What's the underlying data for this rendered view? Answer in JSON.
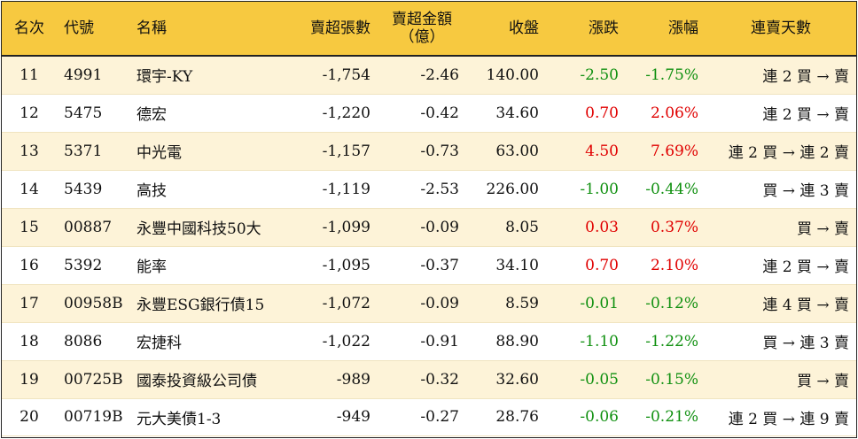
{
  "headers": {
    "rank": "名次",
    "code": "代號",
    "name": "名稱",
    "net_sell_lots": "賣超張數",
    "net_sell_amount": "賣超金額",
    "net_sell_amount_unit": "（億）",
    "close": "收盤",
    "change": "漲跌",
    "change_pct": "漲幅",
    "streak": "連賣天數"
  },
  "colors": {
    "header_bg": "#f7c940",
    "stripe_bg": "#fdf3d8",
    "up": "#e00000",
    "down": "#109010"
  },
  "rows": [
    {
      "rank": "11",
      "code": "4991",
      "name": "環宇-KY",
      "lots": "-1,754",
      "amount": "-2.46",
      "close": "140.00",
      "change": "-2.50",
      "pct": "-1.75%",
      "dir": "down",
      "streak": "連 2 買 → 賣"
    },
    {
      "rank": "12",
      "code": "5475",
      "name": "德宏",
      "lots": "-1,220",
      "amount": "-0.42",
      "close": "34.60",
      "change": "0.70",
      "pct": "2.06%",
      "dir": "up",
      "streak": "連 2 買 → 賣"
    },
    {
      "rank": "13",
      "code": "5371",
      "name": "中光電",
      "lots": "-1,157",
      "amount": "-0.73",
      "close": "63.00",
      "change": "4.50",
      "pct": "7.69%",
      "dir": "up",
      "streak": "連 2 買 → 連 2 賣"
    },
    {
      "rank": "14",
      "code": "5439",
      "name": "高技",
      "lots": "-1,119",
      "amount": "-2.53",
      "close": "226.00",
      "change": "-1.00",
      "pct": "-0.44%",
      "dir": "down",
      "streak": "買 → 連 3 賣"
    },
    {
      "rank": "15",
      "code": "00887",
      "name": "永豐中國科技50大",
      "lots": "-1,099",
      "amount": "-0.09",
      "close": "8.05",
      "change": "0.03",
      "pct": "0.37%",
      "dir": "up",
      "streak": "買 → 賣"
    },
    {
      "rank": "16",
      "code": "5392",
      "name": "能率",
      "lots": "-1,095",
      "amount": "-0.37",
      "close": "34.10",
      "change": "0.70",
      "pct": "2.10%",
      "dir": "up",
      "streak": "連 2 買 → 賣"
    },
    {
      "rank": "17",
      "code": "00958B",
      "name": "永豐ESG銀行債15",
      "lots": "-1,072",
      "amount": "-0.09",
      "close": "8.59",
      "change": "-0.01",
      "pct": "-0.12%",
      "dir": "down",
      "streak": "連 4 買 → 賣"
    },
    {
      "rank": "18",
      "code": "8086",
      "name": "宏捷科",
      "lots": "-1,022",
      "amount": "-0.91",
      "close": "88.90",
      "change": "-1.10",
      "pct": "-1.22%",
      "dir": "down",
      "streak": "買 → 連 3 賣"
    },
    {
      "rank": "19",
      "code": "00725B",
      "name": "國泰投資級公司債",
      "lots": "-989",
      "amount": "-0.32",
      "close": "32.60",
      "change": "-0.05",
      "pct": "-0.15%",
      "dir": "down",
      "streak": "買 → 賣"
    },
    {
      "rank": "20",
      "code": "00719B",
      "name": "元大美債1-3",
      "lots": "-949",
      "amount": "-0.27",
      "close": "28.76",
      "change": "-0.06",
      "pct": "-0.21%",
      "dir": "down",
      "streak": "連 2 買 → 連 9 賣"
    }
  ]
}
